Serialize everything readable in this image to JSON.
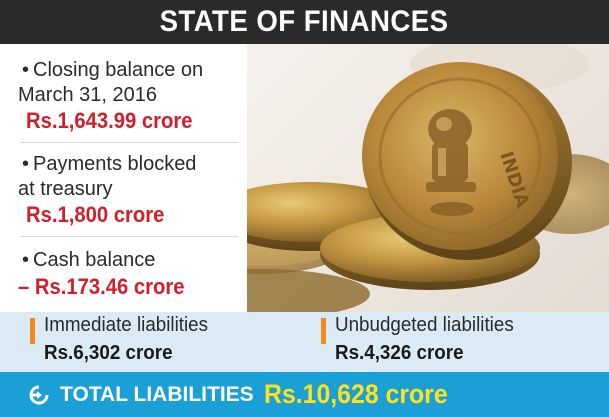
{
  "header": {
    "title": "STATE OF FINANCES"
  },
  "facts": [
    {
      "bullet": "•",
      "label_line1": "Closing balance on",
      "label_line2": "March 31, 2016",
      "value": "Rs.1,643.99 crore"
    },
    {
      "bullet": "•",
      "label_line1": "Payments blocked",
      "label_line2": "at treasury",
      "value": "Rs.1,800 crore"
    },
    {
      "bullet": "•",
      "label_line1": "Cash balance",
      "label_line2": "",
      "value": "– Rs.173.46 crore"
    }
  ],
  "liabilities": [
    {
      "label": "Immediate liabilities",
      "value": "Rs.6,302 crore"
    },
    {
      "label": "Unbudgeted liabilities",
      "value": "Rs.4,326 crore"
    }
  ],
  "total": {
    "label": "TOTAL LIABILITIES",
    "value": "Rs.10,628 crore"
  },
  "coin": {
    "inscription": "INDIA"
  },
  "colors": {
    "header_bg": "#2a2a2a",
    "value_red": "#d01f2a",
    "band_bg": "#dceaf6",
    "accent_orange": "#f08c1a",
    "total_bg": "#1aa0d6",
    "total_value": "#ffe21c"
  },
  "icons": {
    "photo": "coins-photo",
    "total": "arrow-circle-icon"
  }
}
